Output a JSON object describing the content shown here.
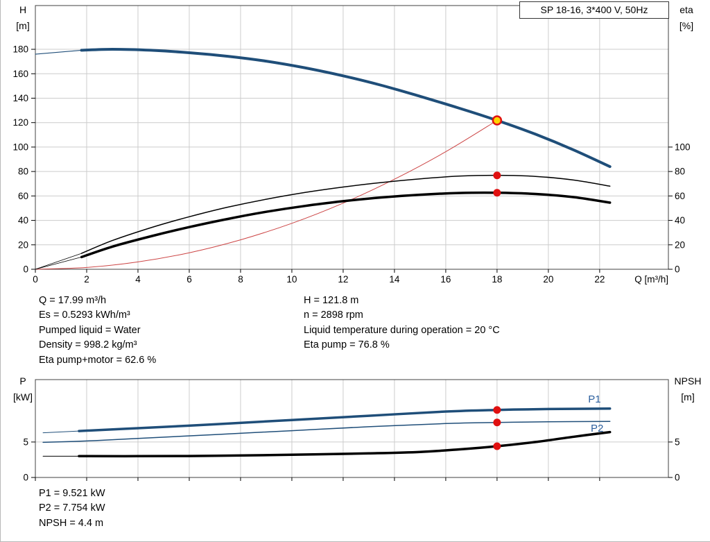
{
  "colors": {
    "blue": "#1f4e79",
    "label_blue": "#2b5f9e",
    "red": "#e01010",
    "light_red": "#cc4444",
    "yellow": "#ffd400",
    "grid": "#cccccc",
    "axis": "#404040",
    "black": "#000000"
  },
  "title_box": {
    "label": "SP 18-16, 3*400 V, 50Hz"
  },
  "top_axis_corners": {
    "left_line1": "H",
    "left_line2": "[m]",
    "right_line1": "eta",
    "right_line2": "[%]"
  },
  "bottom_axis_corners": {
    "left_line1": "P",
    "left_line2": "[kW]",
    "right_line1": "NPSH",
    "right_line2": "[m]"
  },
  "info_top": {
    "left": [
      "Q = 17.99 m³/h",
      "Es = 0.5293 kWh/m³",
      "Pumped liquid = Water",
      "Density = 998.2 kg/m³",
      "Eta pump+motor = 62.6 %"
    ],
    "right": [
      "H = 121.8 m",
      "n = 2898 rpm",
      "Liquid temperature during operation = 20 °C",
      "Eta pump = 76.8 %"
    ]
  },
  "info_bottom": {
    "lines": [
      "P1 = 9.521 kW",
      "P2 = 7.754 kW",
      "NPSH = 4.4 m"
    ]
  },
  "chart_data": [
    {
      "id": "hq-eta",
      "type": "line",
      "title": "SP 18-16, 3*400 V, 50Hz",
      "xlabel": "Q [m³/h]",
      "ylabel_left": "H [m]",
      "ylabel_right": "eta [%]",
      "xlim": [
        0,
        24.68
      ],
      "ylim": [
        0,
        215.8
      ],
      "x_ticks": [
        0,
        2,
        4,
        6,
        8,
        10,
        12,
        14,
        16,
        18,
        20,
        22
      ],
      "x_tick_labels": true,
      "y_ticks_left": [
        0,
        20,
        40,
        60,
        80,
        100,
        120,
        140,
        160,
        180
      ],
      "y_ticks_right": [
        0,
        20,
        40,
        60,
        80,
        100
      ],
      "grid": true,
      "legend": "none",
      "series": [
        {
          "name": "h-curve-min-flow",
          "color": "blue",
          "width": 1.2,
          "x": [
            0,
            1.8
          ],
          "y": [
            176,
            179.2
          ]
        },
        {
          "name": "h-curve",
          "color": "blue",
          "width": 4,
          "x": [
            1.8,
            3,
            4.5,
            6,
            7.5,
            9,
            10.5,
            12,
            13.5,
            15,
            16.5,
            18,
            19.5,
            21,
            22.4
          ],
          "y": [
            179.2,
            180,
            179.2,
            177.2,
            174.3,
            170.3,
            164.9,
            158.3,
            150.5,
            141.5,
            132.0,
            121.8,
            110.5,
            97.5,
            84.0
          ]
        },
        {
          "name": "system-curve",
          "color": "light_red",
          "width": 1,
          "x": [
            0,
            2,
            4,
            6,
            8,
            10,
            12,
            14,
            16,
            18
          ],
          "y": [
            0,
            1.5,
            6.0,
            13.5,
            24.1,
            37.6,
            54.1,
            73.7,
            96.2,
            121.8
          ]
        },
        {
          "name": "eta-pump-min-flow",
          "color": "black",
          "width": 0.8,
          "x": [
            0,
            1.8
          ],
          "y": [
            0,
            13
          ]
        },
        {
          "name": "eta-pump-curve",
          "color": "black",
          "width": 1.5,
          "x": [
            1.8,
            3,
            4.5,
            6,
            7.5,
            9,
            10.5,
            12,
            13.5,
            15,
            16.5,
            18,
            19.5,
            21,
            22.4
          ],
          "y": [
            13,
            23.5,
            34,
            43,
            50.8,
            57.3,
            62.8,
            67.3,
            71.0,
            74.0,
            76.2,
            76.9,
            76.0,
            73.0,
            68.0
          ]
        },
        {
          "name": "eta-total-min-flow",
          "color": "black",
          "width": 0.8,
          "x": [
            0,
            1.8
          ],
          "y": [
            0,
            10
          ]
        },
        {
          "name": "eta-total-curve",
          "color": "black",
          "width": 3.5,
          "x": [
            1.8,
            3,
            4.5,
            6,
            7.5,
            9,
            10.5,
            12,
            13.5,
            15,
            16.5,
            18,
            19.5,
            21,
            22.4
          ],
          "y": [
            10,
            18.5,
            27,
            34.5,
            41.2,
            47,
            51.8,
            55.7,
            58.8,
            61.0,
            62.4,
            62.6,
            61.6,
            59.0,
            54.5
          ]
        }
      ],
      "points": [
        {
          "name": "duty-point",
          "x": 18,
          "y": 121.8,
          "style": "duty"
        },
        {
          "name": "eta-pump-point",
          "x": 18,
          "y": 76.8,
          "style": "red"
        },
        {
          "name": "eta-total-point",
          "x": 18,
          "y": 62.6,
          "style": "red"
        }
      ],
      "labels": []
    },
    {
      "id": "p-npsh",
      "type": "line",
      "title": "",
      "xlabel": "",
      "ylabel_left": "P [kW]",
      "ylabel_right": "NPSH [m]",
      "xlim": [
        0,
        24.68
      ],
      "ylim": [
        0,
        13.8
      ],
      "x_ticks": [
        0,
        2,
        4,
        6,
        8,
        10,
        12,
        14,
        16,
        18,
        20,
        22
      ],
      "x_tick_labels": false,
      "y_ticks_left": [
        0,
        5
      ],
      "y_ticks_right": [
        0,
        5
      ],
      "grid": true,
      "legend": "inline",
      "series": [
        {
          "name": "p1-min-flow",
          "color": "blue",
          "width": 1,
          "x": [
            0.3,
            1.7
          ],
          "y": [
            6.3,
            6.55
          ]
        },
        {
          "name": "p1-curve",
          "color": "blue",
          "width": 3.5,
          "x": [
            1.7,
            4,
            7,
            10,
            13,
            16,
            18,
            20,
            22.4
          ],
          "y": [
            6.55,
            6.95,
            7.5,
            8.1,
            8.7,
            9.3,
            9.521,
            9.65,
            9.72
          ]
        },
        {
          "name": "p2-curve",
          "color": "blue",
          "width": 1.5,
          "x": [
            0.3,
            2,
            4,
            7,
            10,
            13,
            16,
            18,
            20,
            22.4
          ],
          "y": [
            4.95,
            5.15,
            5.5,
            6.05,
            6.6,
            7.15,
            7.6,
            7.754,
            7.85,
            7.9
          ]
        },
        {
          "name": "npsh-min-flow",
          "color": "black",
          "width": 1,
          "x": [
            0.3,
            1.7
          ],
          "y": [
            3.0,
            3.0
          ]
        },
        {
          "name": "npsh-curve",
          "color": "black",
          "width": 3.5,
          "x": [
            1.7,
            4,
            7,
            10,
            13,
            15,
            16.5,
            18,
            19.5,
            21,
            22.4
          ],
          "y": [
            3.0,
            3.0,
            3.05,
            3.2,
            3.4,
            3.6,
            3.95,
            4.4,
            5.0,
            5.75,
            6.4
          ]
        }
      ],
      "points": [
        {
          "name": "p1-point",
          "x": 18,
          "y": 9.521,
          "style": "red"
        },
        {
          "name": "p2-point",
          "x": 18,
          "y": 7.754,
          "style": "red"
        },
        {
          "name": "npsh-point",
          "x": 18,
          "y": 4.4,
          "style": "red"
        }
      ],
      "labels": [
        {
          "name": "p1-label",
          "text": "P1",
          "x": 21.8,
          "y": 10.55,
          "color": "label_blue"
        },
        {
          "name": "p2-label",
          "text": "P2",
          "x": 21.9,
          "y": 6.45,
          "color": "label_blue"
        }
      ]
    }
  ]
}
